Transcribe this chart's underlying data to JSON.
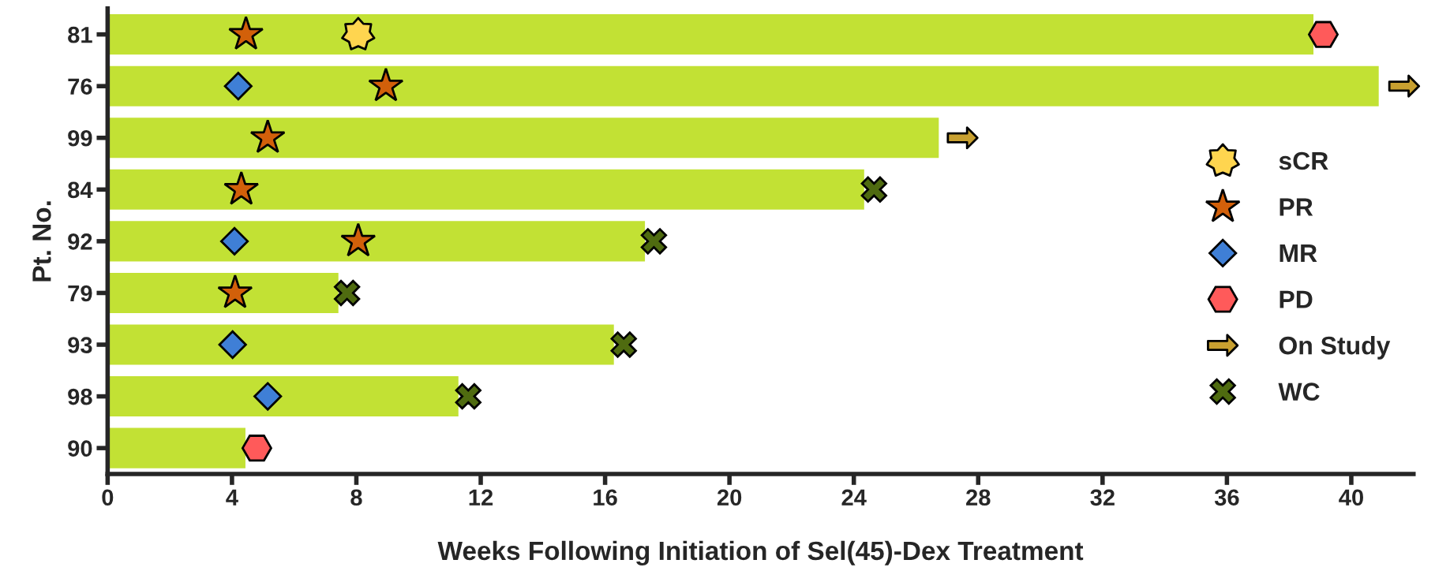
{
  "chart_data": {
    "type": "bar",
    "orientation": "horizontal",
    "xlabel": "Weeks Following Initiation of Sel(45)-Dex Treatment",
    "ylabel": "Pt. No.",
    "categories": [
      "81",
      "76",
      "99",
      "84",
      "92",
      "79",
      "93",
      "98",
      "90"
    ],
    "series": [
      {
        "color": "#c2e134",
        "values": [
          38.8,
          40.9,
          26.75,
          24.35,
          17.3,
          7.44,
          16.3,
          11.3,
          4.45
        ]
      },
      {
        "type": "scatter",
        "name": "sCR",
        "marker": "star7",
        "color": "#ffd54f",
        "x": [
          "81"
        ],
        "values": [
          8.06
        ]
      },
      {
        "type": "scatter",
        "name": "PR",
        "marker": "star",
        "color": "#d2600a",
        "x": [
          "81",
          "76",
          "99",
          "84",
          "92",
          "79"
        ],
        "values": [
          4.45,
          8.95,
          5.15,
          4.3,
          8.06,
          4.1
        ]
      },
      {
        "type": "scatter",
        "name": "MR",
        "marker": "diamond",
        "color": "#3f7fd6",
        "x": [
          "76",
          "92",
          "93",
          "98"
        ],
        "values": [
          4.2,
          4.08,
          4.02,
          5.15
        ]
      },
      {
        "type": "scatter",
        "name": "PD",
        "color": "#ff5a5a",
        "x": [
          "81",
          "90"
        ],
        "values": [
          39.1,
          4.8
        ]
      },
      {
        "type": "scatter",
        "name": "On Study",
        "color": "#c8a030",
        "x": [
          "76",
          "99"
        ],
        "values": [
          41.7,
          27.5
        ]
      },
      {
        "type": "scatter",
        "name": "WC",
        "marker": "cross",
        "color": "#4f6b10",
        "x": [
          "84",
          "92",
          "79",
          "93",
          "98"
        ],
        "values": [
          24.65,
          17.57,
          7.7,
          16.6,
          11.6
        ]
      }
    ],
    "xlim": [
      0,
      42
    ],
    "xticks": [
      0,
      4,
      8,
      12,
      16,
      20,
      24,
      28,
      32,
      36,
      40
    ],
    "grid": false,
    "legend": "right"
  }
}
